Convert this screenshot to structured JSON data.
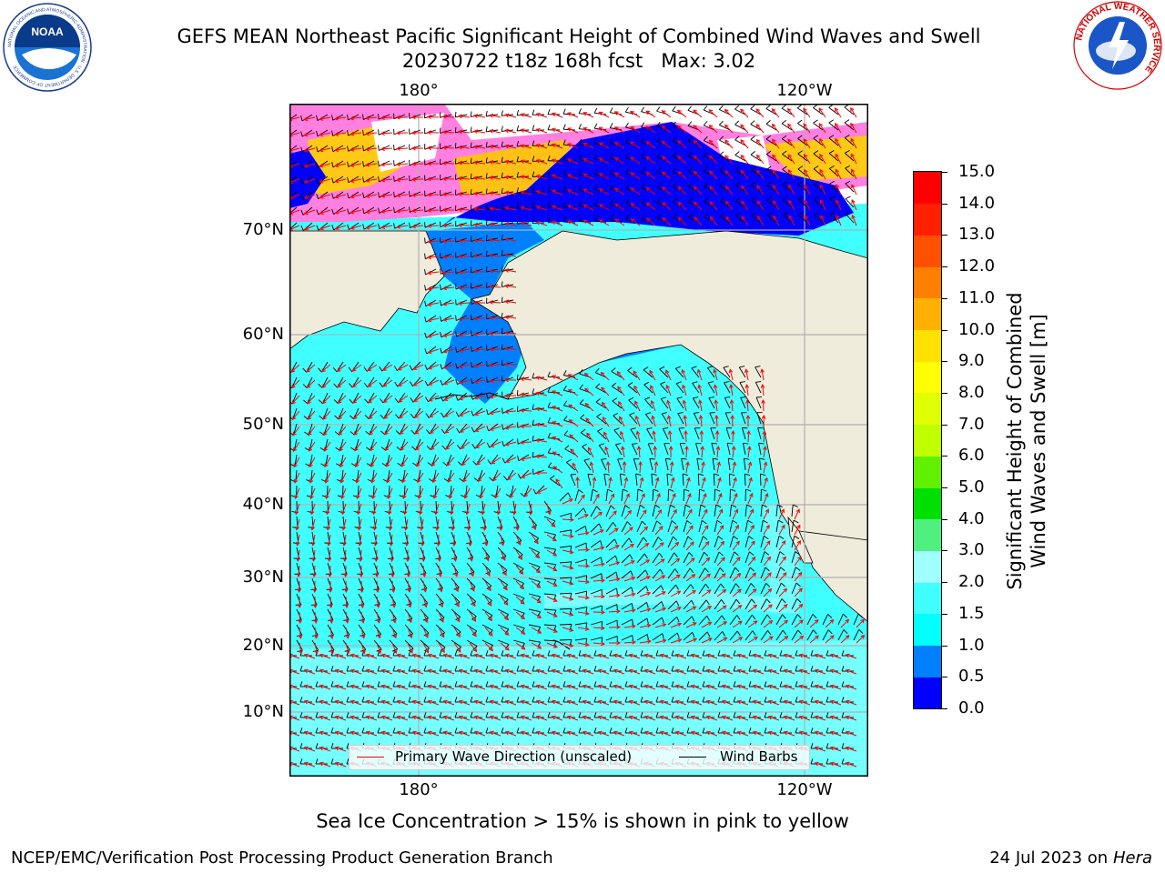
{
  "header": {
    "title_line1": "GEFS MEAN Northeast Pacific Significant Height of Combined Wind Waves and Swell",
    "title_line2": "20230722 t18z 168h fcst   Max: 3.02"
  },
  "logos": {
    "left": {
      "icon": "noaa-logo-icon",
      "text": "NOAA",
      "ring_text": "NATIONAL OCEANIC AND ATMOSPHERIC ADMINISTRATION · U.S. DEPARTMENT OF COMMERCE"
    },
    "right": {
      "icon": "nws-logo-icon",
      "ring_text": "NATIONAL WEATHER SERVICE"
    }
  },
  "map": {
    "lon_labels_top": [
      "180°",
      "120°W"
    ],
    "lon_labels_bottom": [
      "180°",
      "120°W"
    ],
    "lat_labels": [
      "70°N",
      "60°N",
      "50°N",
      "40°N",
      "30°N",
      "20°N",
      "10°N"
    ],
    "legend": {
      "wave_direction": "Primary Wave Direction (unscaled)",
      "wind_barbs": "Wind Barbs"
    },
    "colors": {
      "land": "#efecdc",
      "ocean_main": "#40ffff",
      "wave_arrow": "#ff0000",
      "wind_barb": "#000000"
    }
  },
  "colorbar": {
    "label_line1": "Significant Height of Combined",
    "label_line2": "Wind Waves and Swell [m]",
    "ticks": [
      "0.0",
      "0.5",
      "1.0",
      "1.5",
      "2.0",
      "3.0",
      "4.0",
      "5.0",
      "6.0",
      "7.0",
      "8.0",
      "9.0",
      "10.0",
      "11.0",
      "12.0",
      "13.0",
      "14.0",
      "15.0"
    ],
    "colors": [
      "#0000ff",
      "#0080ff",
      "#00ffff",
      "#40ffff",
      "#a0ffff",
      "#50f080",
      "#00e000",
      "#60f000",
      "#c0ff00",
      "#e0ff00",
      "#ffff00",
      "#ffe000",
      "#ffb000",
      "#ff8000",
      "#ff5000",
      "#ff2000",
      "#ff0000"
    ]
  },
  "note": "Sea Ice Concentration > 15% is shown in pink to yellow",
  "footer": {
    "left": "NCEP/EMC/Verification Post Processing Product Generation Branch",
    "right_prefix": "24 Jul 2023 on ",
    "right_host": "Hera"
  }
}
